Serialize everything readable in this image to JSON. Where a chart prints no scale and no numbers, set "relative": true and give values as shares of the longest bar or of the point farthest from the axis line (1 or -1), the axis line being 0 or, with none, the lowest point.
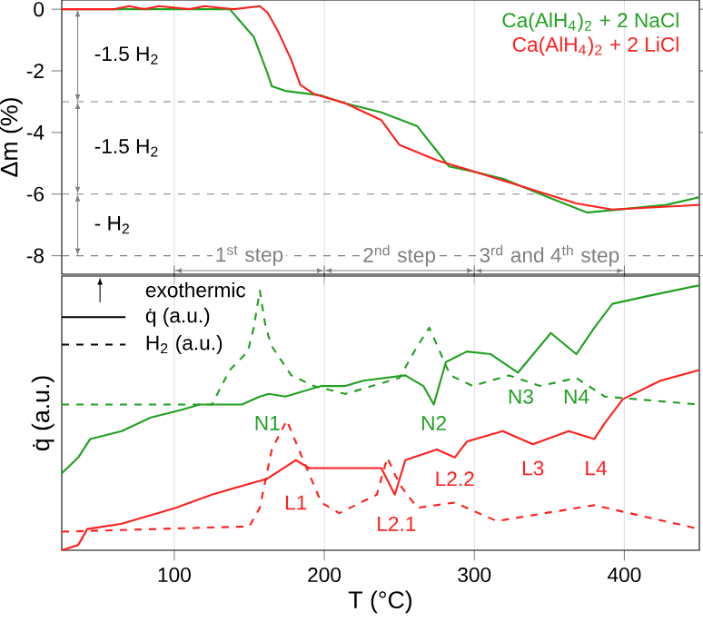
{
  "chart_data": [
    {
      "type": "line",
      "ylabel": "Δm (%)",
      "xlim": [
        25,
        450
      ],
      "xticks": [
        100,
        200,
        300,
        400
      ],
      "ylim": [
        -8.6,
        0.3
      ],
      "yticks": [
        0,
        -2,
        -4,
        -6,
        -8
      ],
      "tick_labels": "y",
      "grid": "x",
      "legend": "top right",
      "series": [
        {
          "name": "Ca(AlH$_{4}$)$_{2}$ + 2 NaCl",
          "color": "#22a022",
          "x": [
            25,
            100,
            137,
            153,
            162,
            165,
            174,
            198,
            214,
            238,
            262,
            275,
            283,
            302,
            319,
            344,
            375,
            396,
            428,
            450
          ],
          "values": [
            0,
            0,
            0,
            -0.9,
            -2.06,
            -2.5,
            -2.65,
            -2.8,
            -3.05,
            -3.35,
            -3.8,
            -4.6,
            -5.1,
            -5.3,
            -5.5,
            -6.0,
            -6.6,
            null,
            -6.35,
            -6.1
          ]
        },
        {
          "name": "Ca(AlH$_{4}$)$_{2}$ + 2 LiCl",
          "color": "#ff2020",
          "x": [
            25,
            60,
            70,
            80,
            90,
            110,
            120,
            140,
            157,
            162,
            169,
            178,
            184,
            193,
            214,
            238,
            250,
            275,
            302,
            335,
            368,
            392,
            450
          ],
          "values": [
            0,
            0,
            0.1,
            0,
            0.1,
            0,
            0.1,
            0,
            0.1,
            -0.1,
            -0.7,
            -1.65,
            -2.45,
            -2.75,
            -3.05,
            -3.6,
            -4.4,
            -4.9,
            -5.3,
            -5.8,
            -6.3,
            -6.5,
            -6.35
          ]
        }
      ],
      "ref_lines": [
        {
          "axis": "y",
          "value": -3,
          "color": "#808080",
          "line_style": "dashed"
        },
        {
          "axis": "y",
          "value": -6,
          "color": "#808080",
          "line_style": "dashed"
        },
        {
          "axis": "y",
          "value": -8,
          "color": "#808080",
          "line_style": "dashed"
        }
      ],
      "annotations": [
        "-1.5 H$_{2}$",
        "-1.5 H$_{2}$",
        "- H$_{2}$",
        "1$^{st}$ step",
        "2$^{nd}$ step",
        "3$^{rd}$ and 4$^{th}$ step"
      ]
    },
    {
      "type": "line",
      "relative": true,
      "xlabel": "T (°C)",
      "ylabel": "q̇ (a.u.)",
      "xlim": [
        25,
        450
      ],
      "xticks": [
        100,
        200,
        300,
        400
      ],
      "tick_labels": "x",
      "grid": "x",
      "series": [
        {
          "color": "#22a022",
          "line_style": "solid",
          "x": [
            25,
            36,
            44,
            65,
            84,
            105,
            117,
            145,
            157,
            163,
            174,
            198,
            214,
            226,
            254,
            266,
            273,
            281,
            295,
            311,
            329,
            351,
            368,
            380,
            392,
            416,
            450
          ],
          "values": [
            0.29,
            0.35,
            0.42,
            0.45,
            0.5,
            0.53,
            0.55,
            0.55,
            0.58,
            0.59,
            0.58,
            0.62,
            0.62,
            0.64,
            0.66,
            0.62,
            0.55,
            0.71,
            0.75,
            0.74,
            0.67,
            0.82,
            0.74,
            0.84,
            0.93,
            0.96,
            1.0
          ]
        },
        {
          "color": "#22a022",
          "line_style": "dashed",
          "x": [
            25,
            125,
            137,
            149,
            153,
            157,
            161,
            165,
            178,
            193,
            214,
            250,
            262,
            270,
            284,
            299,
            323,
            344,
            368,
            387,
            450
          ],
          "values": [
            0.55,
            0.55,
            0.68,
            0.75,
            0.84,
            0.98,
            0.84,
            0.77,
            0.66,
            0.62,
            0.59,
            0.65,
            0.77,
            0.84,
            0.66,
            0.62,
            0.66,
            0.62,
            0.65,
            0.58,
            0.55
          ]
        },
        {
          "color": "#ff2020",
          "line_style": "solid",
          "x": [
            25,
            36,
            42,
            65,
            101,
            125,
            162,
            181,
            190,
            214,
            238,
            247,
            254,
            275,
            287,
            295,
            319,
            339,
            363,
            380,
            387,
            399,
            424,
            450
          ],
          "values": [
            0,
            0.02,
            0.08,
            0.1,
            0.16,
            0.21,
            0.27,
            0.34,
            0.31,
            0.31,
            0.31,
            0.21,
            0.34,
            0.38,
            0.35,
            0.41,
            0.45,
            0.4,
            0.45,
            0.42,
            0.48,
            0.57,
            0.64,
            0.68
          ]
        },
        {
          "color": "#ff2020",
          "line_style": "dashed",
          "x": [
            25,
            150,
            157,
            165,
            175,
            186,
            198,
            210,
            235,
            242,
            250,
            262,
            287,
            315,
            347,
            380,
            450
          ],
          "values": [
            0.07,
            0.09,
            0.16,
            0.38,
            0.49,
            0.34,
            0.18,
            0.14,
            0.21,
            0.35,
            0.25,
            0.16,
            0.18,
            0.11,
            0.14,
            0.17,
            0.08
          ]
        }
      ],
      "annotations": [
        "exothermic",
        "q̇ (a.u.)",
        "H$_{2}$ (a.u.)",
        "N1",
        "N2",
        "N3",
        "N4",
        "L1",
        "L2.1",
        "L2.2",
        "L3",
        "L4"
      ]
    }
  ]
}
